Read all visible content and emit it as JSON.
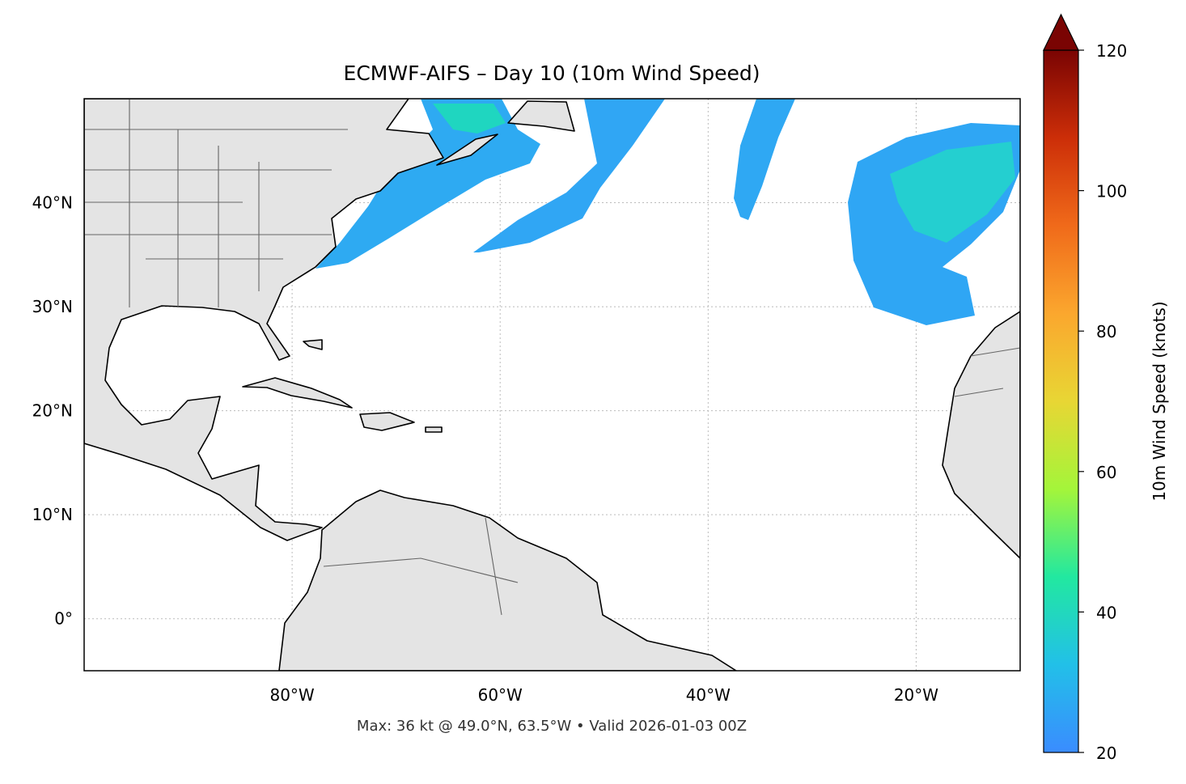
{
  "chart_data": {
    "type": "map",
    "title": "ECMWF-AIFS – Day 10 (10m Wind Speed)",
    "footnote": "Max: 36 kt @ 49.0°N, 63.5°W • Valid 2026-01-03 00Z",
    "xlim": [
      -100,
      -10
    ],
    "ylim": [
      -5,
      50
    ],
    "xticks": [
      {
        "value": -80,
        "label": "80°W"
      },
      {
        "value": -60,
        "label": "60°W"
      },
      {
        "value": -40,
        "label": "40°W"
      },
      {
        "value": -20,
        "label": "20°W"
      }
    ],
    "yticks": [
      {
        "value": 0,
        "label": "0°"
      },
      {
        "value": 10,
        "label": "10°N"
      },
      {
        "value": 20,
        "label": "20°N"
      },
      {
        "value": 30,
        "label": "30°N"
      },
      {
        "value": 40,
        "label": "40°N"
      }
    ],
    "grid": true,
    "colorbar": {
      "label": "10m Wind Speed (knots)",
      "lim": [
        20,
        120
      ],
      "ticks": [
        20,
        40,
        60,
        80,
        100,
        120
      ],
      "colors": [
        "#3a8cff",
        "#22c0e8",
        "#22e8a0",
        "#a4f53a",
        "#e8d634",
        "#fba72e",
        "#f06a1a",
        "#cc2e08",
        "#7a0403"
      ],
      "extend": "max"
    }
  }
}
